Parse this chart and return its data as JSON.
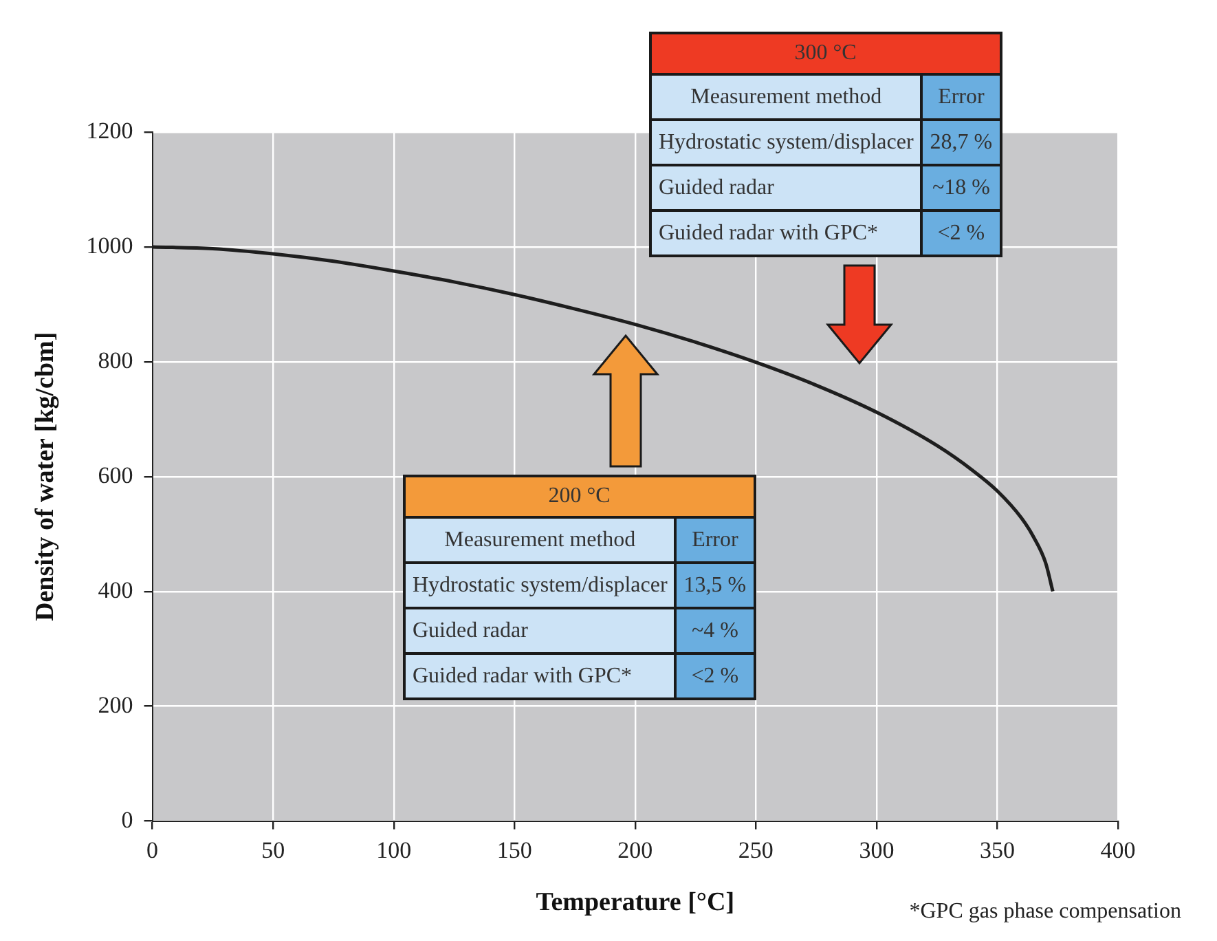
{
  "chart_data": {
    "type": "line",
    "xlabel": "Temperature [°C]",
    "ylabel": "Density of water [kg/cbm]",
    "x": [
      0,
      25,
      50,
      75,
      100,
      125,
      150,
      175,
      200,
      225,
      250,
      275,
      300,
      325,
      340,
      350,
      360,
      365,
      370,
      373
    ],
    "series": [
      {
        "color": "#1e1e1e",
        "values": [
          1000,
          997,
          988,
          975,
          958,
          939,
          917,
          892,
          865,
          834,
          799,
          759,
          712,
          654,
          610,
          575,
          528,
          495,
          450,
          400
        ]
      }
    ],
    "xlim": [
      0,
      400
    ],
    "xticks": [
      0,
      50,
      100,
      150,
      200,
      250,
      300,
      350,
      400
    ],
    "ylim": [
      0,
      1200
    ],
    "yticks": [
      0,
      200,
      400,
      600,
      800,
      1000,
      1200
    ],
    "grid": true,
    "legend": false,
    "marker": "none",
    "line_style": "solid",
    "annotations": [
      "300 °C",
      "Measurement method",
      "Error",
      "Hydrostatic system/displacer",
      "28,7 %",
      "Guided radar",
      "~18 %",
      "Guided radar with GPC*",
      "<2 %",
      "200 °C",
      "Measurement method",
      "Error",
      "Hydrostatic system/displacer",
      "13,5 %",
      "Guided radar",
      "~4 %",
      "Guided radar with GPC*",
      "<2 %",
      "*GPC gas phase compensation"
    ]
  }
}
